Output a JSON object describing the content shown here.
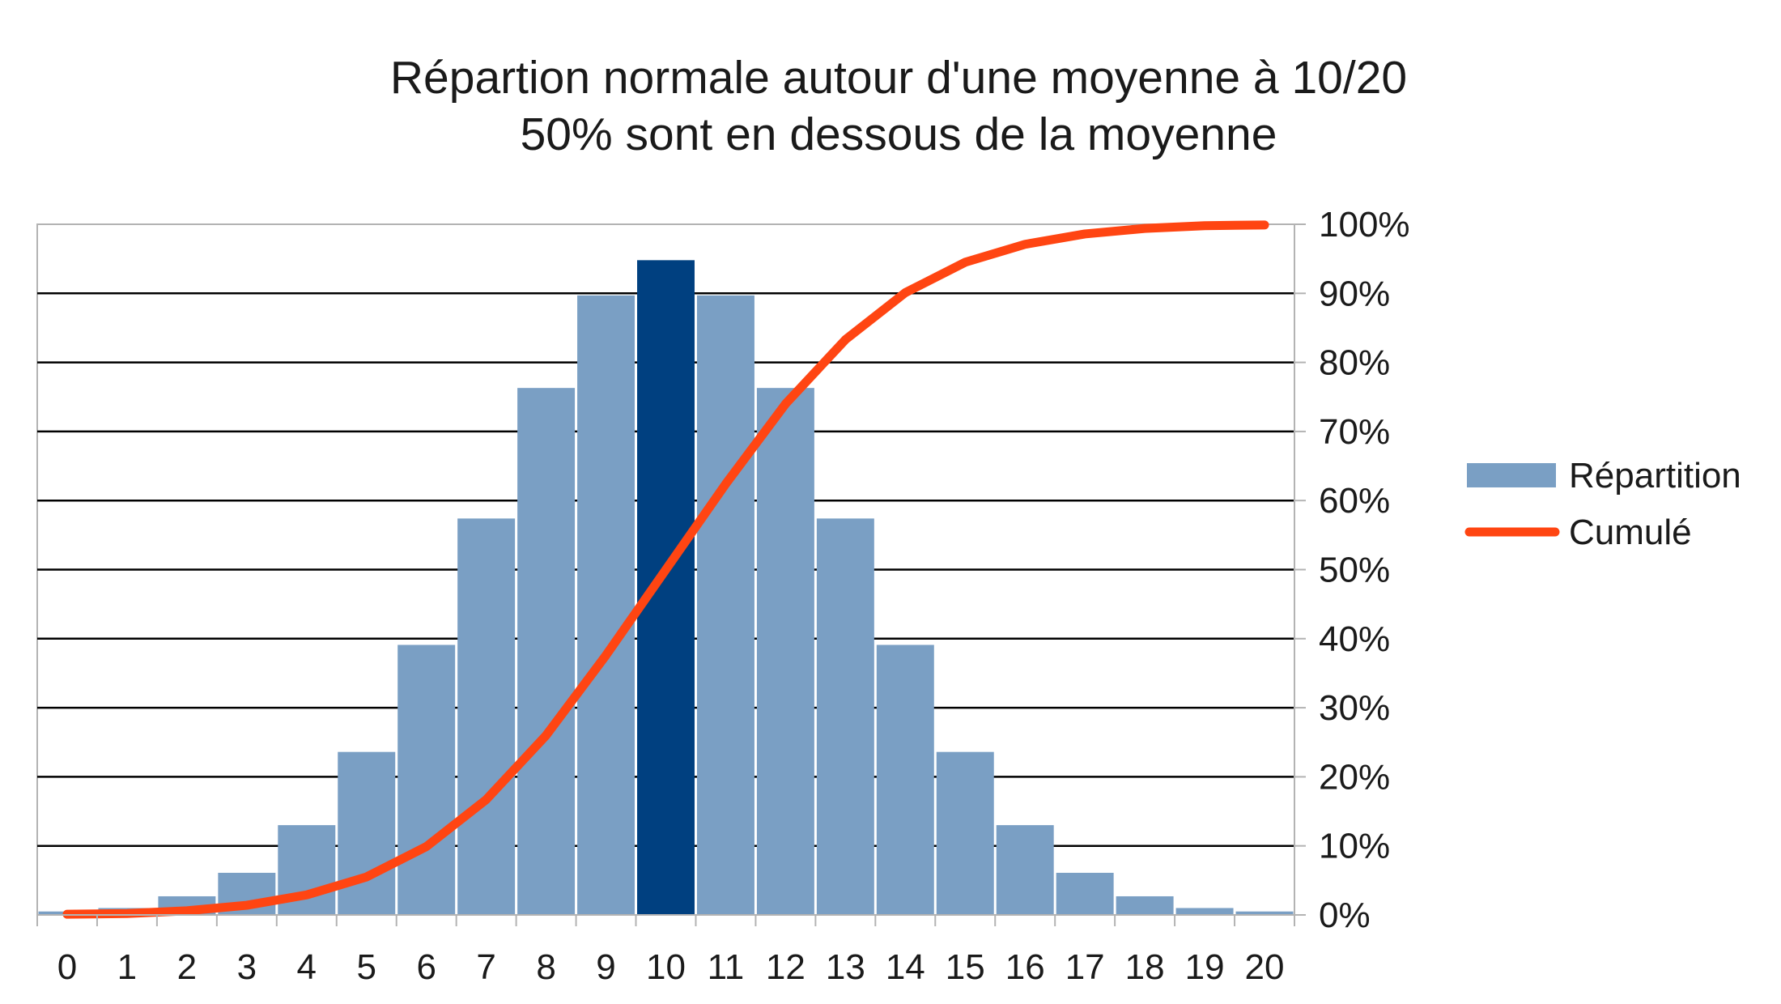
{
  "chart_data": {
    "type": "bar",
    "title": "Répartion normale autour d'une moyenne à 10/20",
    "subtitle": "50% sont en dessous de la moyenne",
    "xlabel": "",
    "ylabel": "",
    "categories": [
      "0",
      "1",
      "2",
      "3",
      "4",
      "5",
      "6",
      "7",
      "8",
      "9",
      "10",
      "11",
      "12",
      "13",
      "14",
      "15",
      "16",
      "17",
      "18",
      "19",
      "20"
    ],
    "x_ticks": [
      "0",
      "1",
      "2",
      "3",
      "4",
      "5",
      "6",
      "7",
      "8",
      "9",
      "10",
      "11",
      "12",
      "13",
      "14",
      "15",
      "16",
      "17",
      "18",
      "19",
      "20"
    ],
    "y_ticks": [
      "0%",
      "10%",
      "20%",
      "30%",
      "40%",
      "50%",
      "60%",
      "70%",
      "80%",
      "90%",
      "100%"
    ],
    "ylim": [
      0,
      1
    ],
    "highlight_category": "10",
    "series": [
      {
        "name": "Répartition",
        "type": "bar",
        "color": "#7a9fc4",
        "highlight_color": "#004080",
        "values": [
          0.005,
          0.01,
          0.027,
          0.061,
          0.13,
          0.236,
          0.391,
          0.574,
          0.763,
          0.897,
          0.948,
          0.897,
          0.763,
          0.574,
          0.391,
          0.236,
          0.13,
          0.061,
          0.027,
          0.01,
          0.005
        ]
      },
      {
        "name": "Cumulé",
        "type": "line",
        "color": "#ff4512",
        "values": [
          0.001,
          0.002,
          0.006,
          0.014,
          0.029,
          0.055,
          0.099,
          0.167,
          0.26,
          0.376,
          0.5,
          0.624,
          0.74,
          0.833,
          0.901,
          0.945,
          0.971,
          0.986,
          0.994,
          0.998,
          0.999
        ]
      }
    ],
    "grid": true,
    "legend_position": "right"
  }
}
